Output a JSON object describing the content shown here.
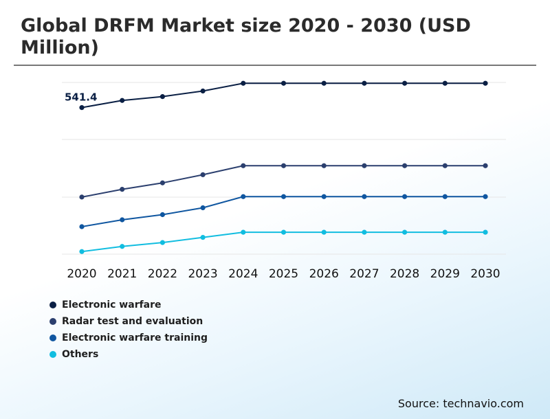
{
  "title": "Global DRFM Market size 2020 - 2030 (USD Million)",
  "source": "Source: technavio.com",
  "chart_data": {
    "type": "line",
    "title": "Global DRFM Market size 2020 - 2030 (USD Million)",
    "x": [
      "2020",
      "2021",
      "2022",
      "2023",
      "2024",
      "2025",
      "2026",
      "2027",
      "2028",
      "2029",
      "2030"
    ],
    "series": [
      {
        "name": "Electronic warfare",
        "color": "#0a1f44",
        "values": [
          541.4,
          558,
          567,
          580,
          598,
          598,
          598,
          598,
          598,
          598,
          598
        ]
      },
      {
        "name": "Radar test and evaluation",
        "color": "#2b3f6e",
        "values": [
          333,
          351,
          366,
          385,
          406,
          406,
          406,
          406,
          406,
          406,
          406
        ]
      },
      {
        "name": "Electronic warfare training",
        "color": "#0f56a0",
        "values": [
          264,
          280,
          292,
          308,
          334,
          334,
          334,
          334,
          334,
          334,
          334
        ]
      },
      {
        "name": "Others",
        "color": "#11bde0",
        "values": [
          206,
          218,
          227,
          239,
          251,
          251,
          251,
          251,
          251,
          251,
          251
        ]
      }
    ],
    "data_labels": [
      {
        "series": 0,
        "index": 0,
        "text": "541.4"
      }
    ],
    "ylim": [
      200,
      600
    ],
    "yticks": [
      200,
      300,
      400,
      500,
      600
    ],
    "grid": true,
    "legend": "bottom-left",
    "xlabel": "",
    "ylabel": ""
  }
}
